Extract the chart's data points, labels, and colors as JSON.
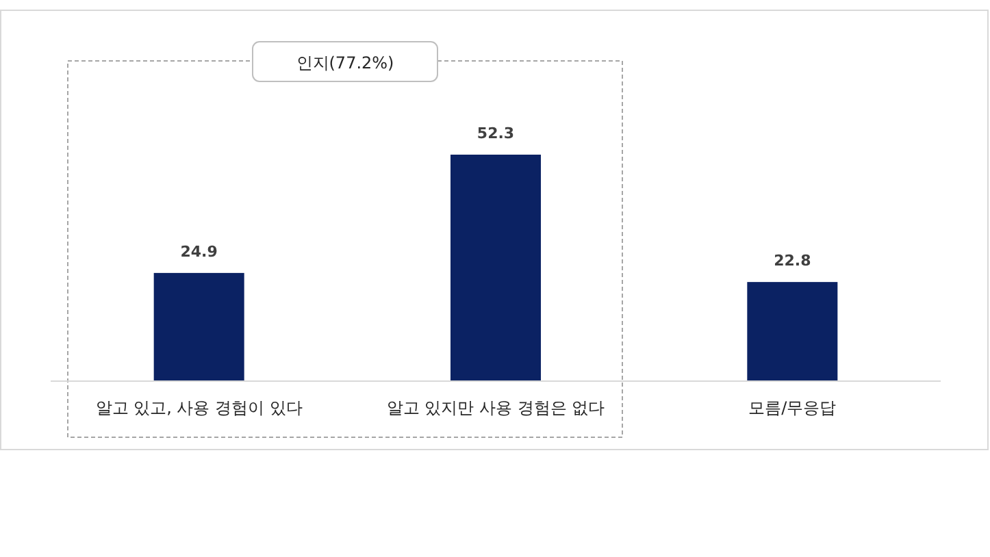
{
  "chart_data": {
    "type": "bar",
    "categories": [
      "알고 있고, 사용 경험이 있다",
      "알고 있지만 사용 경험은 없다",
      "모름/무응답"
    ],
    "values": [
      24.9,
      52.3,
      22.8
    ],
    "color": "#0b2263",
    "data_labels": true,
    "annotations": [
      "인지(77.2%)"
    ]
  }
}
